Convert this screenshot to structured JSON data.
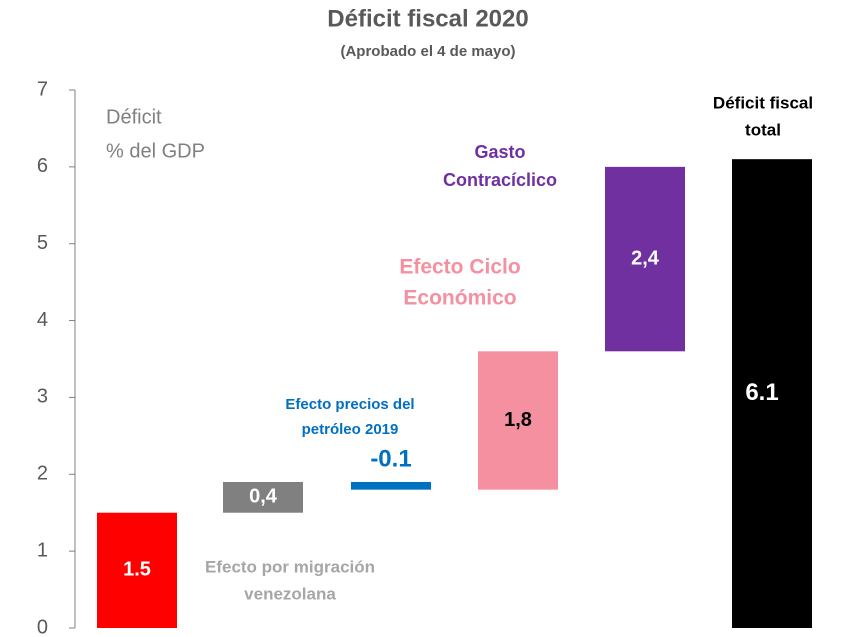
{
  "chart_data": {
    "type": "waterfall",
    "title": "Déficit fiscal 2020",
    "subtitle": "(Aprobado el 4 de mayo)",
    "y_label": [
      "Déficit",
      "% del GDP"
    ],
    "categories": [
      null,
      [
        "Efecto por migración",
        "venezolana"
      ],
      [
        "Efecto precios del",
        "petróleo 2019"
      ],
      [
        "Efecto Ciclo",
        "Económico"
      ],
      [
        "Gasto",
        "Contracíclico"
      ],
      [
        "Déficit fiscal",
        "total"
      ]
    ],
    "values": [
      1.5,
      0.4,
      -0.1,
      1.8,
      2.4,
      6.1
    ],
    "value_labels": [
      "1.5",
      "0,4",
      "-0.1",
      "1,8",
      "2,4",
      "6.1"
    ],
    "total": [
      false,
      false,
      false,
      false,
      false,
      true
    ],
    "colors": [
      "#ff0000",
      "#808080",
      "#0070c0",
      "#f4909f",
      "#7030a0",
      "#000000"
    ],
    "ylim": [
      0,
      7
    ],
    "yticks": [
      0,
      1,
      2,
      3,
      4,
      5,
      6,
      7
    ]
  }
}
